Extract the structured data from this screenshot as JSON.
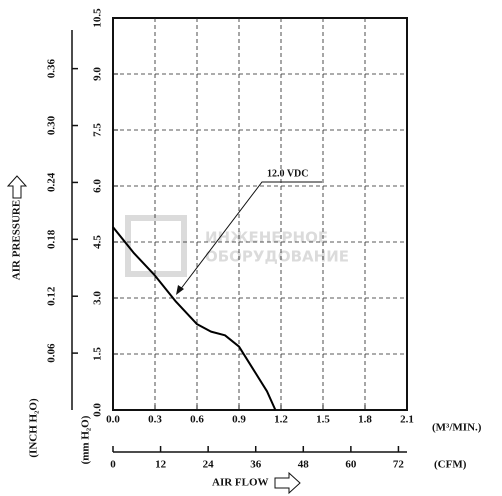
{
  "chart_data": {
    "type": "line",
    "watermark": [
      "ИНЖЕНЕРНОЕ",
      "ОБОРУДОВАНИЕ"
    ],
    "annotation": "12.0 VDC",
    "y_title": "AIR PRESSURE",
    "y_unit": "(mm H₂O)",
    "y2_unit": "(INCH H₂O)",
    "x_unit": "(M³/MIN.)",
    "x2_unit": "(CFM)",
    "x_title": "AIR FLOW",
    "xlim": [
      0,
      2.1
    ],
    "xticks": [
      {
        "value": 0,
        "label": "0.0"
      },
      0.3,
      0.6,
      0.9,
      1.2,
      1.5,
      1.8,
      2.1
    ],
    "ylim": [
      0,
      10.5
    ],
    "yticks": [
      {
        "value": 0,
        "label": "0.0"
      },
      1.5,
      {
        "value": 3,
        "label": "3.0"
      },
      4.5,
      {
        "value": 6,
        "label": "6.0"
      },
      7.5,
      {
        "value": 9,
        "label": "9.0"
      },
      10.5
    ],
    "y2lim": [
      0,
      0.4134
    ],
    "y2ticks": [
      0.06,
      0.12,
      0.18,
      0.24,
      {
        "value": 0.3,
        "label": "0.30"
      },
      0.36
    ],
    "x2lim": [
      0,
      74.16
    ],
    "x2ticks": [
      0,
      12,
      24,
      36,
      48,
      60,
      72
    ],
    "grid": true,
    "series": [
      {
        "name": "12.0 VDC",
        "color": "#000000",
        "x": [
          0,
          0.15,
          0.3,
          0.45,
          0.6,
          0.7,
          0.8,
          0.9,
          1.0,
          1.1,
          1.16
        ],
        "values": [
          4.9,
          4.2,
          3.6,
          2.9,
          2.3,
          2.1,
          2.0,
          1.7,
          1.1,
          0.5,
          0
        ]
      }
    ]
  }
}
